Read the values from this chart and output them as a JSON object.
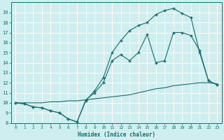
{
  "xlabel": "Humidex (Indice chaleur)",
  "bg_color": "#ceeef0",
  "grid_color": "#ffffff",
  "line_color": "#1a6b6b",
  "line1_x": [
    0,
    1,
    2,
    3,
    4,
    5,
    6,
    7,
    8,
    9,
    10,
    11,
    12,
    13,
    14,
    15,
    16,
    17,
    18,
    19,
    20,
    21,
    22,
    23
  ],
  "line1_y": [
    10.0,
    9.9,
    9.6,
    9.5,
    9.2,
    9.0,
    8.4,
    8.1,
    10.3,
    11.0,
    12.0,
    14.2,
    14.8,
    14.2,
    15.0,
    16.8,
    14.0,
    14.2,
    17.0,
    17.0,
    16.7,
    15.2,
    12.2,
    11.8
  ],
  "line2_x": [
    0,
    1,
    2,
    3,
    4,
    5,
    6,
    7,
    8,
    9,
    10,
    11,
    12,
    13,
    14,
    15,
    16,
    17,
    18,
    19,
    20,
    21,
    22,
    23
  ],
  "line2_y": [
    10.0,
    9.9,
    9.6,
    9.5,
    9.2,
    9.0,
    8.4,
    8.1,
    10.2,
    11.2,
    12.5,
    15.0,
    16.2,
    17.2,
    17.7,
    18.0,
    18.8,
    19.2,
    19.4,
    18.9,
    18.5,
    15.0,
    12.2,
    11.8
  ],
  "line3_x": [
    0,
    1,
    2,
    3,
    4,
    5,
    6,
    7,
    8,
    9,
    10,
    11,
    12,
    13,
    14,
    15,
    16,
    17,
    18,
    19,
    20,
    21,
    22,
    23
  ],
  "line3_y": [
    10.0,
    10.0,
    10.0,
    10.0,
    10.1,
    10.1,
    10.2,
    10.2,
    10.3,
    10.4,
    10.5,
    10.6,
    10.7,
    10.8,
    11.0,
    11.2,
    11.4,
    11.5,
    11.7,
    11.8,
    11.9,
    12.0,
    12.0,
    11.9
  ],
  "xlim": [
    -0.5,
    23.5
  ],
  "ylim": [
    8,
    20
  ],
  "yticks": [
    8,
    9,
    10,
    11,
    12,
    13,
    14,
    15,
    16,
    17,
    18,
    19
  ],
  "xticks": [
    0,
    1,
    2,
    3,
    4,
    5,
    6,
    7,
    8,
    9,
    10,
    11,
    12,
    13,
    14,
    15,
    16,
    17,
    18,
    19,
    20,
    21,
    22,
    23
  ]
}
